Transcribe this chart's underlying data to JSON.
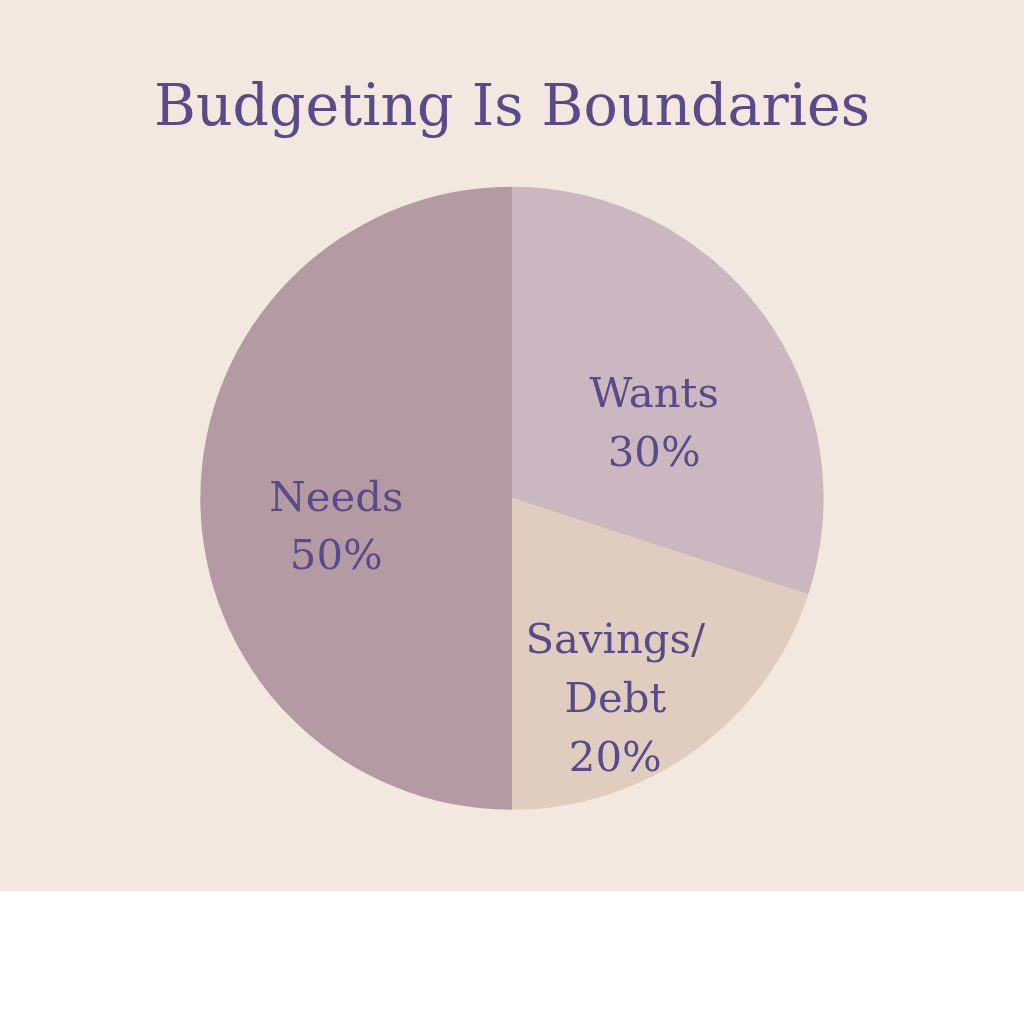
{
  "chart_data": {
    "type": "pie",
    "title": "Budgeting Is Boundaries",
    "categories": [
      "Wants",
      "Savings/Debt",
      "Needs"
    ],
    "values": [
      30,
      20,
      50
    ],
    "value_labels": [
      "30%",
      "20%",
      "50%"
    ],
    "colors": [
      "#cbb7bf",
      "#dfcdbf",
      "#b39aa3"
    ],
    "legend": false
  }
}
